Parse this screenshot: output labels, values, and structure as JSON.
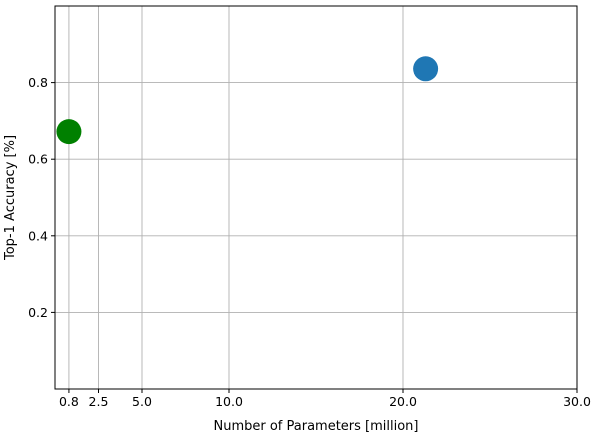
{
  "chart_data": {
    "type": "scatter",
    "title": "",
    "xlabel": "Number of Parameters [million]",
    "ylabel": "Top-1 Accuracy [%]",
    "xlim": [
      0,
      30
    ],
    "ylim": [
      0,
      1.0
    ],
    "x_ticks": [
      0.8,
      2.5,
      5.0,
      10.0,
      20.0,
      30.0
    ],
    "x_tick_labels": [
      "0.8",
      "2.5",
      "5.0",
      "10.0",
      "20.0",
      "30.0"
    ],
    "y_ticks": [
      0.2,
      0.4,
      0.6,
      0.8
    ],
    "y_tick_labels": [
      "0.2",
      "0.4",
      "0.6",
      "0.8"
    ],
    "grid": true,
    "points": [
      {
        "x": 0.8,
        "y": 0.672,
        "color": "#008000"
      },
      {
        "x": 21.3,
        "y": 0.836,
        "color": "#1f77b4"
      }
    ]
  }
}
